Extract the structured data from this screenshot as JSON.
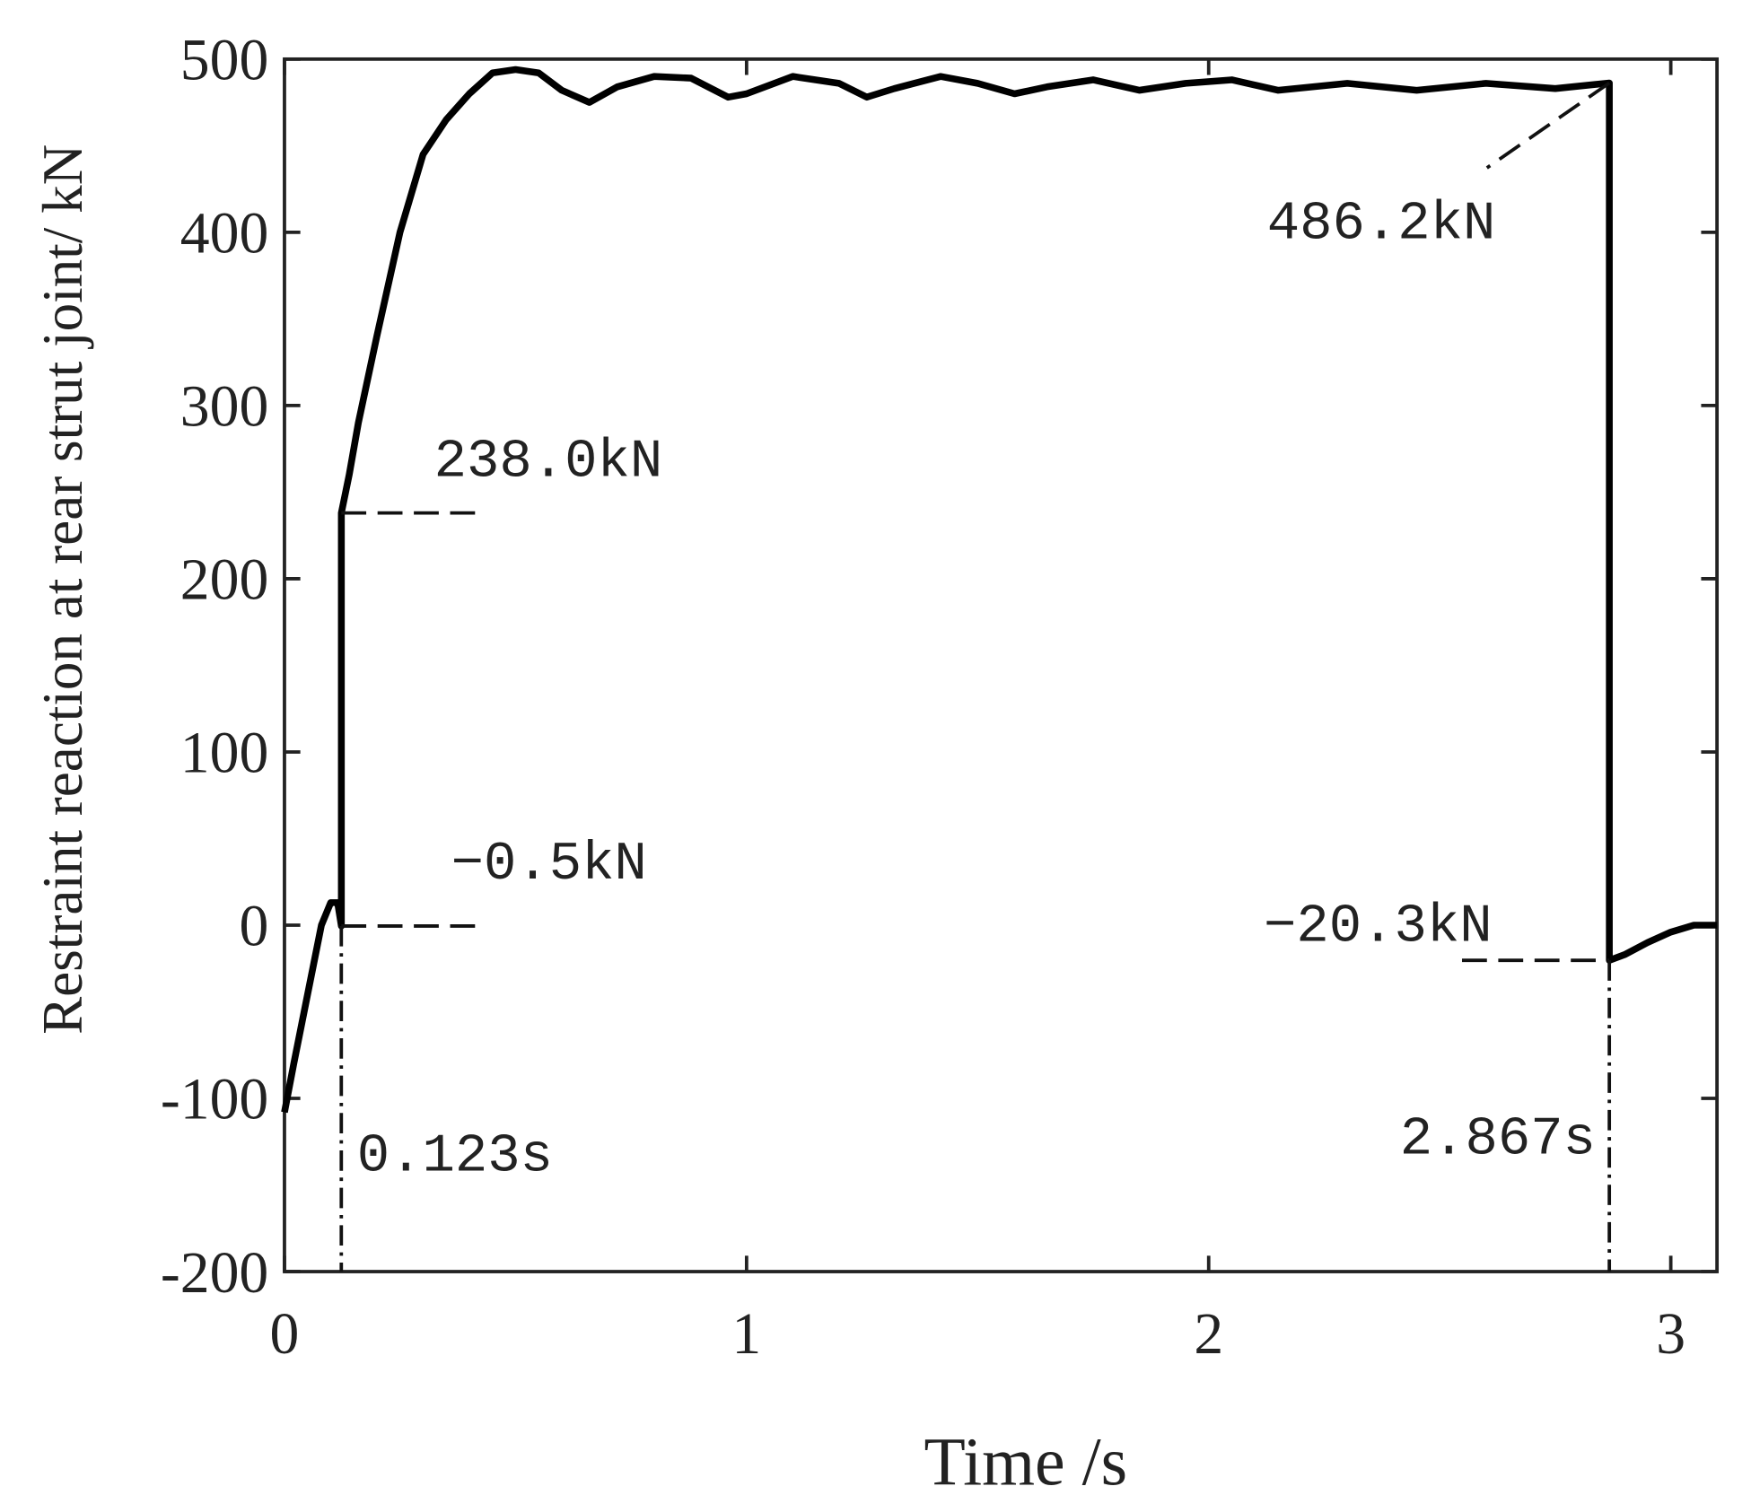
{
  "chart_data": {
    "type": "line",
    "x_label": "Time /s",
    "y_label": "Restraint reaction at rear strut joint/ kN",
    "x": [
      0,
      0.02,
      0.05,
      0.08,
      0.1,
      0.115,
      0.123,
      0.123,
      0.14,
      0.16,
      0.2,
      0.25,
      0.3,
      0.35,
      0.4,
      0.45,
      0.5,
      0.55,
      0.6,
      0.66,
      0.72,
      0.8,
      0.88,
      0.96,
      1.0,
      1.1,
      1.2,
      1.26,
      1.32,
      1.42,
      1.5,
      1.58,
      1.65,
      1.75,
      1.85,
      1.95,
      2.05,
      2.15,
      2.3,
      2.45,
      2.6,
      2.75,
      2.867,
      2.867,
      2.9,
      2.95,
      3.0,
      3.05,
      3.1
    ],
    "values": [
      -108,
      -80,
      -40,
      0,
      13,
      13,
      -0.5,
      238,
      260,
      290,
      340,
      400,
      445,
      465,
      480,
      492,
      494,
      492,
      482,
      475,
      484,
      490,
      489,
      478,
      480,
      490,
      486,
      478,
      483,
      490,
      486,
      480,
      484,
      488,
      482,
      486,
      488,
      482,
      486,
      482,
      486,
      483,
      486.2,
      -20.3,
      -17,
      -10,
      -4,
      0,
      0
    ],
    "color": "#000000",
    "xlim": [
      0,
      3.1
    ],
    "xticks": [
      0,
      1,
      2,
      3
    ],
    "ylim": [
      -200,
      500
    ],
    "yticks": [
      -200,
      -100,
      0,
      100,
      200,
      300,
      400,
      500
    ],
    "annotations": [
      {
        "text": "238.0kN",
        "value": 238.0
      },
      {
        "text": "−0.5kN",
        "value": -0.5
      },
      {
        "text": "486.2kN",
        "value": 486.2
      },
      {
        "text": "−20.3kN",
        "value": -20.3
      },
      {
        "text": "0.123s",
        "value": 0.123
      },
      {
        "text": "2.867s",
        "value": 2.867
      }
    ]
  }
}
